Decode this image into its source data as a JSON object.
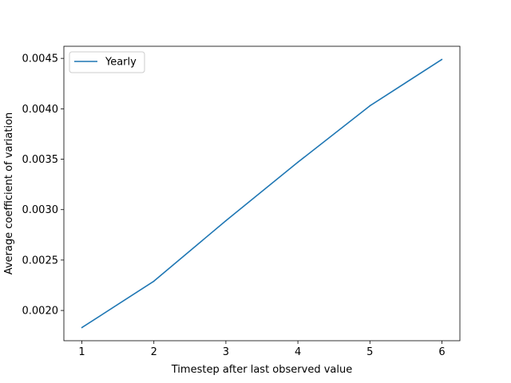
{
  "chart_data": {
    "type": "line",
    "title": "",
    "xlabel": "Timestep after last observed value",
    "ylabel": "Average coefficient of variation",
    "x": [
      1,
      2,
      3,
      4,
      5,
      6
    ],
    "xlim": [
      0.75,
      6.25
    ],
    "ylim": [
      0.0017,
      0.00462
    ],
    "xticks": [
      1,
      2,
      3,
      4,
      5,
      6
    ],
    "xtick_labels": [
      "1",
      "2",
      "3",
      "4",
      "5",
      "6"
    ],
    "yticks": [
      0.002,
      0.0025,
      0.003,
      0.0035,
      0.004,
      0.0045
    ],
    "ytick_labels": [
      "0.0020",
      "0.0025",
      "0.0030",
      "0.0035",
      "0.0040",
      "0.0045"
    ],
    "grid": false,
    "legend": "top-left",
    "series": [
      {
        "name": "Yearly",
        "color": "#1f77b4",
        "values": [
          0.00183,
          0.00229,
          0.00289,
          0.00347,
          0.00403,
          0.00449
        ]
      }
    ]
  }
}
